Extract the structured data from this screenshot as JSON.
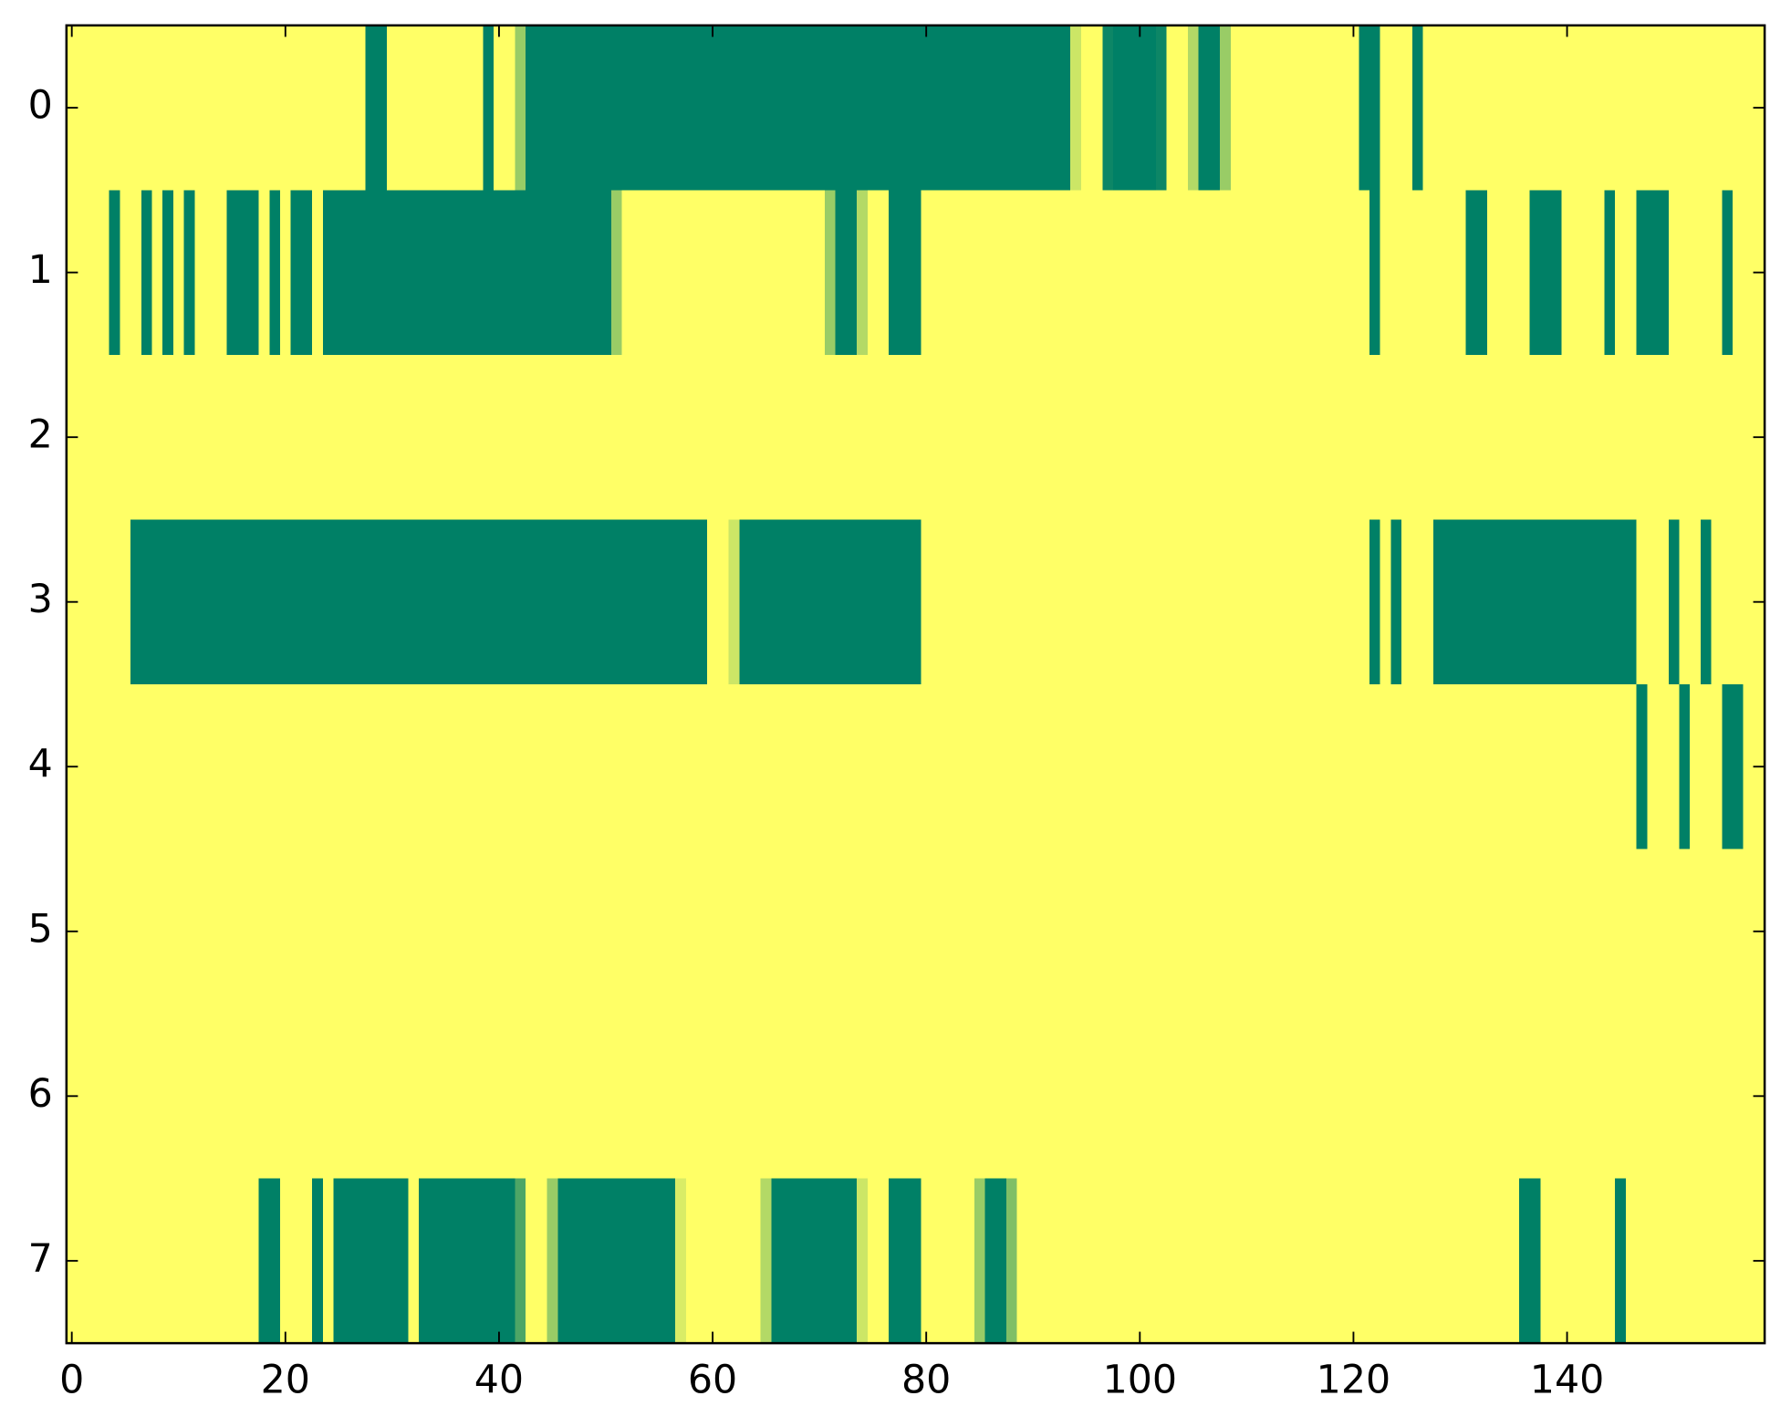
{
  "chart_data": {
    "type": "heatmap",
    "colormap": "summer",
    "xlim": [
      -0.5,
      158.5
    ],
    "ylim": [
      7.5,
      -0.5
    ],
    "xticks": [
      0,
      20,
      40,
      60,
      80,
      100,
      120,
      140
    ],
    "yticks": [
      0,
      1,
      2,
      3,
      4,
      5,
      6,
      7
    ],
    "values": [
      [
        1,
        1,
        1,
        1,
        1,
        1,
        1,
        1,
        1,
        1,
        1,
        1,
        1,
        1,
        1,
        1,
        1,
        1,
        1,
        1,
        1,
        1,
        1,
        1,
        1,
        1,
        1,
        1,
        0,
        0,
        1,
        1,
        1,
        1,
        1,
        1,
        1,
        1,
        1,
        0,
        1,
        1,
        0.6,
        0,
        0,
        0,
        0,
        0,
        0,
        0,
        0,
        0,
        0,
        0,
        0,
        0,
        0,
        0,
        0,
        0,
        0,
        0,
        0,
        0,
        0,
        0,
        0,
        0,
        0,
        0,
        0,
        0,
        0,
        0,
        0,
        0,
        0,
        0,
        0,
        0,
        0,
        0,
        0,
        0,
        0,
        0,
        0,
        0,
        0,
        0,
        0,
        0,
        0,
        0,
        0.8,
        1,
        1,
        0.05,
        0,
        0,
        0,
        0,
        0.05,
        1,
        1,
        0.7,
        0,
        0,
        0.6,
        1,
        1,
        1,
        1,
        1,
        1,
        1,
        1,
        1,
        1,
        1,
        1,
        0,
        0,
        1,
        1,
        1,
        0,
        1,
        1,
        1,
        1,
        1,
        1,
        1,
        1,
        1,
        1,
        1,
        1,
        1,
        1,
        1,
        1,
        1,
        1,
        1,
        1,
        1,
        1,
        1,
        1,
        1,
        1,
        1,
        1,
        1,
        1,
        1,
        1
      ],
      [
        1,
        1,
        1,
        1,
        0,
        1,
        1,
        0,
        1,
        0,
        1,
        0,
        1,
        1,
        1,
        0,
        0,
        0,
        1,
        0,
        1,
        0,
        0,
        1,
        0,
        0,
        0,
        0,
        0,
        0,
        0,
        0,
        0,
        0,
        0,
        0,
        0,
        0,
        0,
        0,
        0,
        0,
        0,
        0,
        0,
        0,
        0,
        0,
        0,
        0,
        0,
        0.6,
        1,
        1,
        1,
        1,
        1,
        1,
        1,
        1,
        1,
        1,
        1,
        1,
        1,
        1,
        1,
        1,
        1,
        1,
        1,
        0.6,
        0,
        0,
        0.7,
        1,
        1,
        0,
        0,
        0,
        1,
        1,
        1,
        1,
        1,
        1,
        1,
        1,
        1,
        1,
        1,
        1,
        1,
        1,
        1,
        1,
        1,
        1,
        1,
        1,
        1,
        1,
        1,
        1,
        1,
        1,
        1,
        1,
        1,
        1,
        1,
        1,
        1,
        1,
        1,
        1,
        1,
        1,
        1,
        1,
        1,
        1,
        0,
        1,
        1,
        1,
        1,
        1,
        1,
        1,
        1,
        0,
        0,
        1,
        1,
        1,
        1,
        0,
        0,
        0,
        1,
        1,
        1,
        1,
        0,
        1,
        1,
        0,
        0,
        0,
        1,
        1,
        1,
        1,
        1,
        0,
        1,
        1,
        1
      ],
      [
        1,
        1,
        1,
        1,
        1,
        1,
        1,
        1,
        1,
        1,
        1,
        1,
        1,
        1,
        1,
        1,
        1,
        1,
        1,
        1,
        1,
        1,
        1,
        1,
        1,
        1,
        1,
        1,
        1,
        1,
        1,
        1,
        1,
        1,
        1,
        1,
        1,
        1,
        1,
        1,
        1,
        1,
        1,
        1,
        1,
        1,
        1,
        1,
        1,
        1,
        1,
        1,
        1,
        1,
        1,
        1,
        1,
        1,
        1,
        1,
        1,
        1,
        1,
        1,
        1,
        1,
        1,
        1,
        1,
        1,
        1,
        1,
        1,
        1,
        1,
        1,
        1,
        1,
        1,
        1,
        1,
        1,
        1,
        1,
        1,
        1,
        1,
        1,
        1,
        1,
        1,
        1,
        1,
        1,
        1,
        1,
        1,
        1,
        1,
        1,
        1,
        1,
        1,
        1,
        1,
        1,
        1,
        1,
        1,
        1,
        1,
        1,
        1,
        1,
        1,
        1,
        1,
        1,
        1,
        1,
        1,
        1,
        1,
        1,
        1,
        1,
        1,
        1,
        1,
        1,
        1,
        1,
        1,
        1,
        1,
        1,
        1,
        1,
        1,
        1,
        1,
        1,
        1,
        1,
        1,
        1,
        1,
        1,
        1,
        1,
        1,
        1,
        1,
        1,
        1,
        1,
        1,
        1,
        1
      ],
      [
        1,
        1,
        1,
        1,
        1,
        1,
        0,
        0,
        0,
        0,
        0,
        0,
        0,
        0,
        0,
        0,
        0,
        0,
        0,
        0,
        0,
        0,
        0,
        0,
        0,
        0,
        0,
        0,
        0,
        0,
        0,
        0,
        0,
        0,
        0,
        0,
        0,
        0,
        0,
        0,
        0,
        0,
        0,
        0,
        0,
        0,
        0,
        0,
        0,
        0,
        0,
        0,
        0,
        0,
        0,
        0,
        0,
        0,
        0,
        0,
        1,
        1,
        0.8,
        0,
        0,
        0,
        0,
        0,
        0,
        0,
        0,
        0,
        0,
        0,
        0,
        0,
        0,
        0,
        0,
        0,
        1,
        1,
        1,
        1,
        1,
        1,
        1,
        1,
        1,
        1,
        1,
        1,
        1,
        1,
        1,
        1,
        1,
        1,
        1,
        1,
        1,
        1,
        1,
        1,
        1,
        1,
        1,
        1,
        1,
        1,
        1,
        1,
        1,
        1,
        1,
        1,
        1,
        1,
        1,
        1,
        1,
        1,
        0,
        1,
        0,
        1,
        1,
        1,
        0,
        0,
        0,
        0,
        0,
        0,
        0,
        0,
        0,
        0,
        0,
        0,
        0,
        0,
        0,
        0,
        0,
        0,
        0,
        1,
        1,
        1,
        0,
        1,
        1,
        0,
        1,
        1,
        1,
        1,
        1
      ],
      [
        1,
        1,
        1,
        1,
        1,
        1,
        1,
        1,
        1,
        1,
        1,
        1,
        1,
        1,
        1,
        1,
        1,
        1,
        1,
        1,
        1,
        1,
        1,
        1,
        1,
        1,
        1,
        1,
        1,
        1,
        1,
        1,
        1,
        1,
        1,
        1,
        1,
        1,
        1,
        1,
        1,
        1,
        1,
        1,
        1,
        1,
        1,
        1,
        1,
        1,
        1,
        1,
        1,
        1,
        1,
        1,
        1,
        1,
        1,
        1,
        1,
        1,
        1,
        1,
        1,
        1,
        1,
        1,
        1,
        1,
        1,
        1,
        1,
        1,
        1,
        1,
        1,
        1,
        1,
        1,
        1,
        1,
        1,
        1,
        1,
        1,
        1,
        1,
        1,
        1,
        1,
        1,
        1,
        1,
        1,
        1,
        1,
        1,
        1,
        1,
        1,
        1,
        1,
        1,
        1,
        1,
        1,
        1,
        1,
        1,
        1,
        1,
        1,
        1,
        1,
        1,
        1,
        1,
        1,
        1,
        1,
        1,
        1,
        1,
        1,
        1,
        1,
        1,
        1,
        1,
        1,
        1,
        1,
        1,
        1,
        1,
        1,
        1,
        1,
        1,
        1,
        1,
        1,
        1,
        1,
        1,
        1,
        0,
        1,
        1,
        1,
        0,
        1,
        1,
        1,
        0,
        0,
        1,
        1
      ],
      [
        1,
        1,
        1,
        1,
        1,
        1,
        1,
        1,
        1,
        1,
        1,
        1,
        1,
        1,
        1,
        1,
        1,
        1,
        1,
        1,
        1,
        1,
        1,
        1,
        1,
        1,
        1,
        1,
        1,
        1,
        1,
        1,
        1,
        1,
        1,
        1,
        1,
        1,
        1,
        1,
        1,
        1,
        1,
        1,
        1,
        1,
        1,
        1,
        1,
        1,
        1,
        1,
        1,
        1,
        1,
        1,
        1,
        1,
        1,
        1,
        1,
        1,
        1,
        1,
        1,
        1,
        1,
        1,
        1,
        1,
        1,
        1,
        1,
        1,
        1,
        1,
        1,
        1,
        1,
        1,
        1,
        1,
        1,
        1,
        1,
        1,
        1,
        1,
        1,
        1,
        1,
        1,
        1,
        1,
        1,
        1,
        1,
        1,
        1,
        1,
        1,
        1,
        1,
        1,
        1,
        1,
        1,
        1,
        1,
        1,
        1,
        1,
        1,
        1,
        1,
        1,
        1,
        1,
        1,
        1,
        1,
        1,
        1,
        1,
        1,
        1,
        1,
        1,
        1,
        1,
        1,
        1,
        1,
        1,
        1,
        1,
        1,
        1,
        1,
        1,
        1,
        1,
        1,
        1,
        1,
        1,
        1,
        1,
        1,
        1,
        1,
        1,
        1,
        1,
        1,
        1,
        1,
        1,
        1
      ],
      [
        1,
        1,
        1,
        1,
        1,
        1,
        1,
        1,
        1,
        1,
        1,
        1,
        1,
        1,
        1,
        1,
        1,
        1,
        1,
        1,
        1,
        1,
        1,
        1,
        1,
        1,
        1,
        1,
        1,
        1,
        1,
        1,
        1,
        1,
        1,
        1,
        1,
        1,
        1,
        1,
        1,
        1,
        1,
        1,
        1,
        1,
        1,
        1,
        1,
        1,
        1,
        1,
        1,
        1,
        1,
        1,
        1,
        1,
        1,
        1,
        1,
        1,
        1,
        1,
        1,
        1,
        1,
        1,
        1,
        1,
        1,
        1,
        1,
        1,
        1,
        1,
        1,
        1,
        1,
        1,
        1,
        1,
        1,
        1,
        1,
        1,
        1,
        1,
        1,
        1,
        1,
        1,
        1,
        1,
        1,
        1,
        1,
        1,
        1,
        1,
        1,
        1,
        1,
        1,
        1,
        1,
        1,
        1,
        1,
        1,
        1,
        1,
        1,
        1,
        1,
        1,
        1,
        1,
        1,
        1,
        1,
        1,
        1,
        1,
        1,
        1,
        1,
        1,
        1,
        1,
        1,
        1,
        1,
        1,
        1,
        1,
        1,
        1,
        1,
        1,
        1,
        1,
        1,
        1,
        1,
        1,
        1,
        1,
        1,
        1,
        1,
        1,
        1,
        1,
        1,
        1,
        1,
        1,
        1
      ],
      [
        1,
        1,
        1,
        1,
        1,
        1,
        1,
        1,
        1,
        1,
        1,
        1,
        1,
        1,
        1,
        1,
        1,
        1,
        0,
        0,
        1,
        1,
        1,
        0,
        1,
        0,
        0,
        0,
        0,
        0,
        0,
        0,
        1,
        0,
        0,
        0,
        0,
        0,
        0,
        0,
        0,
        0,
        0.3,
        1,
        1,
        0.6,
        0,
        0,
        0,
        0,
        0,
        0,
        0,
        0,
        0,
        0,
        0,
        0.85,
        1,
        1,
        1,
        1,
        1,
        1,
        1,
        0.7,
        0,
        0,
        0,
        0,
        0,
        0,
        0,
        0,
        0.8,
        1,
        1,
        0,
        0,
        0,
        1,
        1,
        1,
        1,
        1,
        0.6,
        0,
        0,
        0.5,
        1,
        1,
        1,
        1,
        1,
        1,
        1,
        1,
        1,
        1,
        1,
        1,
        1,
        1,
        1,
        1,
        1,
        1,
        1,
        1,
        1,
        1,
        1,
        1,
        1,
        1,
        1,
        1,
        1,
        1,
        1,
        1,
        1,
        1,
        1,
        1,
        1,
        1,
        1,
        1,
        1,
        1,
        1,
        1,
        1,
        1,
        1,
        0,
        0,
        1,
        1,
        1,
        1,
        1,
        1,
        1,
        0,
        1,
        1,
        1,
        1,
        1,
        1,
        1,
        1,
        1,
        1,
        1,
        1,
        1
      ]
    ]
  }
}
